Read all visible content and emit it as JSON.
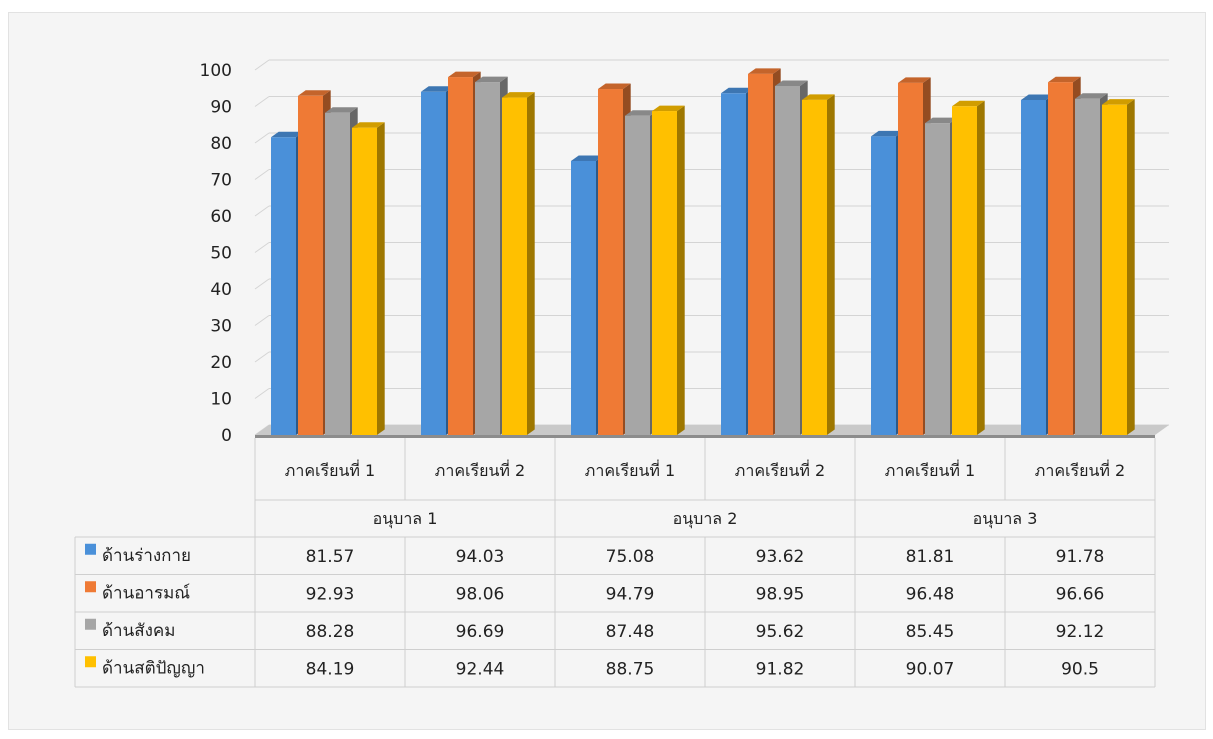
{
  "chart_data": {
    "type": "bar",
    "title": "",
    "xlabel": "",
    "ylabel": "",
    "ylim": [
      0,
      100
    ],
    "yticks": [
      0,
      10,
      20,
      30,
      40,
      50,
      60,
      70,
      80,
      90,
      100
    ],
    "grid": true,
    "style": "3d-clustered-bar-with-data-table",
    "groups": [
      "อนุบาล 1",
      "อนุบาล 2",
      "อนุบาล 3"
    ],
    "categories": [
      "ภาคเรียนที่ 1",
      "ภาคเรียนที่ 2",
      "ภาคเรียนที่ 1",
      "ภาคเรียนที่ 2",
      "ภาคเรียนที่ 1",
      "ภาคเรียนที่ 2"
    ],
    "series": [
      {
        "name": "ด้านร่างกาย",
        "color": "#4a90d9",
        "values": [
          81.57,
          94.03,
          75.08,
          93.62,
          81.81,
          91.78
        ]
      },
      {
        "name": "ด้านอารมณ์",
        "color": "#ef7a35",
        "values": [
          92.93,
          98.06,
          94.79,
          98.95,
          96.48,
          96.66
        ]
      },
      {
        "name": "ด้านสังคม",
        "color": "#a6a6a6",
        "values": [
          88.28,
          96.69,
          87.48,
          95.62,
          85.45,
          92.12
        ]
      },
      {
        "name": "ด้านสติปัญญา",
        "color": "#ffc000",
        "values": [
          84.19,
          92.44,
          88.75,
          91.82,
          90.07,
          90.5
        ]
      }
    ]
  }
}
